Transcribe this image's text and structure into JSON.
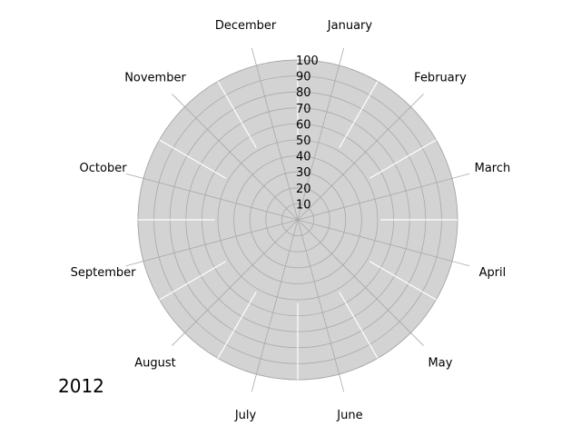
{
  "chart_data": {
    "type": "polar-radial",
    "title": "",
    "year_label": "2012",
    "months": [
      "January",
      "February",
      "March",
      "April",
      "May",
      "June",
      "July",
      "August",
      "September",
      "October",
      "November",
      "December"
    ],
    "radial_ticks": [
      10,
      20,
      30,
      40,
      50,
      60,
      70,
      80,
      90,
      100
    ],
    "rlim": [
      0,
      100
    ],
    "grid": true,
    "colors": {
      "background": "#d3d3d3",
      "ring_grid": "#a9a9a9",
      "spoke_grid": "#a9a9a9",
      "sector_divider": "#ffffff",
      "text": "#000000"
    },
    "series": []
  }
}
